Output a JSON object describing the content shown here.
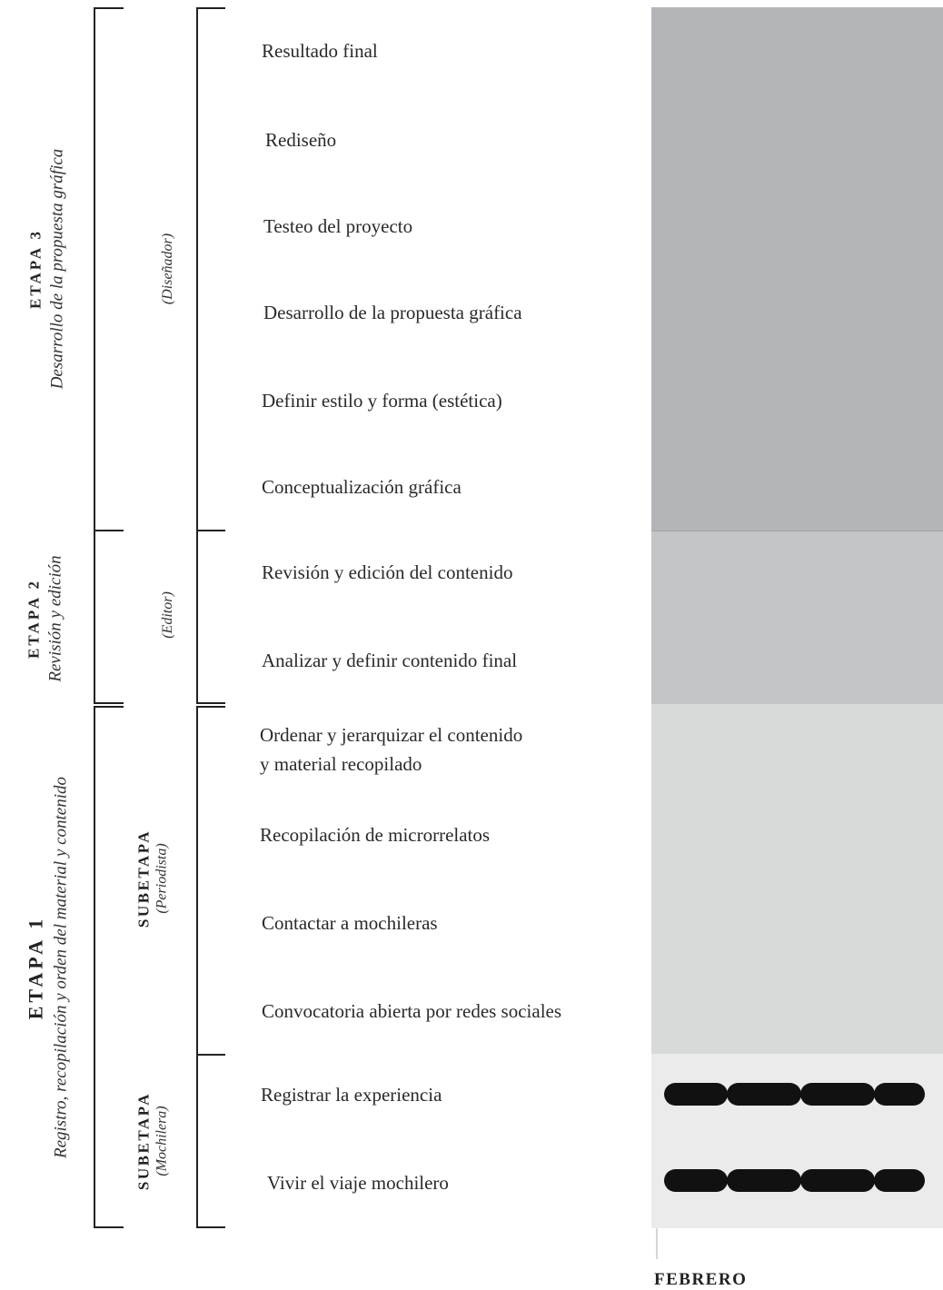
{
  "stages": {
    "etapa3": {
      "title": "ETAPA 3",
      "subtitle": "Desarrollo de la propuesta gráfica",
      "role": "(Diseñador)"
    },
    "etapa2": {
      "title": "ETAPA 2",
      "subtitle": "Revisión y edición",
      "role": "(Editor)"
    },
    "etapa1": {
      "title": "ETAPA 1",
      "subtitle": "Registro, recopilación y orden del material y contenido"
    },
    "subetapa_periodista": {
      "title": "SUBETAPA",
      "role": "(Periodista)"
    },
    "subetapa_mochilera": {
      "title": "SUBETAPA",
      "role": "(Mochilera)"
    }
  },
  "tasks": [
    "Resultado final",
    "Rediseño",
    "Testeo del proyecto",
    "Desarrollo de la propuesta gráfica",
    "Definir estilo y forma (estética)",
    "Conceptualización gráfica",
    "Revisión y edición del contenido",
    "Analizar y definir contenido final",
    "Ordenar y jerarquizar el contenido",
    "y material recopilado",
    "Recopilación de microrrelatos",
    "Contactar a mochileras",
    "Convocatoria abierta por redes sociales",
    "Registrar la experiencia",
    "Vivir el viaje mochilero"
  ],
  "timeline": {
    "month": "FEBRERO",
    "colors": {
      "etapa3": "#b3b6b8",
      "etapa2": "#c4c5c6",
      "subetapa_periodista": "#d8d9d9",
      "subetapa_mochilera": "#ebebeb",
      "bar": "#111111"
    },
    "active_rows": [
      "Registrar la experiencia",
      "Vivir el viaje mochilero"
    ]
  }
}
